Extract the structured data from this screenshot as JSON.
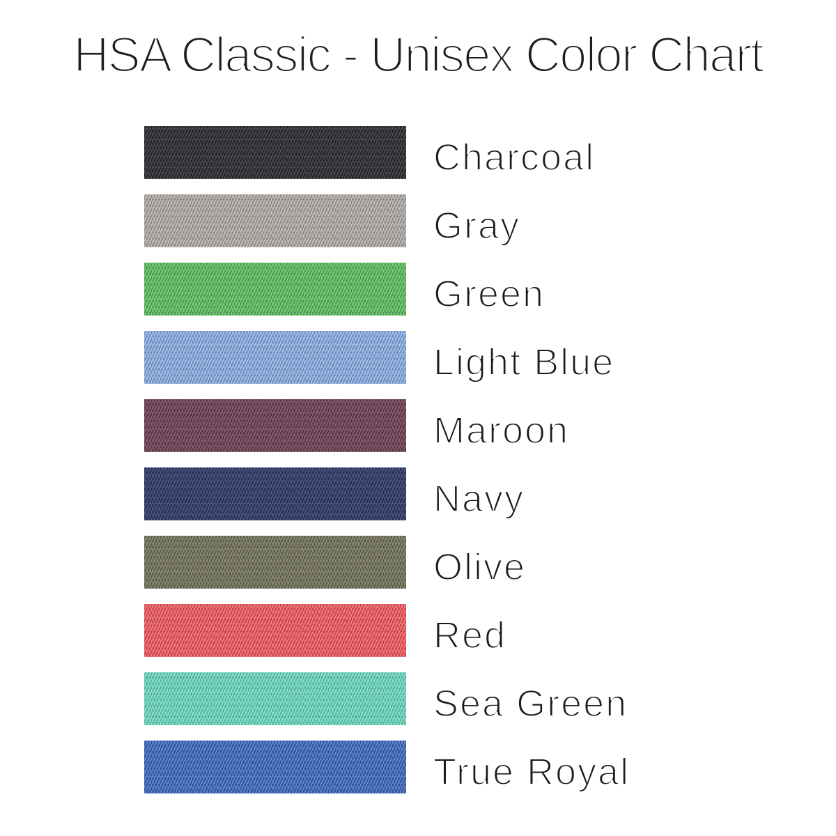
{
  "page": {
    "title": "HSA Classic - Unisex Color Chart",
    "background_color": "#ffffff",
    "text_color": "#1b1b1b"
  },
  "swatches": [
    {
      "name": "Charcoal",
      "base": "#2f3033",
      "light": "#57585c",
      "dark": "#1c1d20"
    },
    {
      "name": "Gray",
      "base": "#a29e9b",
      "light": "#d5d1ce",
      "dark": "#837e79"
    },
    {
      "name": "Green",
      "base": "#58b158",
      "light": "#98d898",
      "dark": "#3e9342"
    },
    {
      "name": "Light Blue",
      "base": "#7fa0d4",
      "light": "#c4d3ed",
      "dark": "#5e81bc"
    },
    {
      "name": "Maroon",
      "base": "#6c4254",
      "light": "#936f7e",
      "dark": "#4c2b3a"
    },
    {
      "name": "Navy",
      "base": "#323b64",
      "light": "#5c6694",
      "dark": "#1f2544"
    },
    {
      "name": "Olive",
      "base": "#6f705c",
      "light": "#9b9b82",
      "dark": "#4c4d3a"
    },
    {
      "name": "Red",
      "base": "#e25257",
      "light": "#f49c9a",
      "dark": "#c23a42"
    },
    {
      "name": "Sea Green",
      "base": "#63cbb1",
      "light": "#ace9da",
      "dark": "#43ab92"
    },
    {
      "name": "True Royal",
      "base": "#3c63b5",
      "light": "#7f9bd6",
      "dark": "#27488f"
    }
  ]
}
